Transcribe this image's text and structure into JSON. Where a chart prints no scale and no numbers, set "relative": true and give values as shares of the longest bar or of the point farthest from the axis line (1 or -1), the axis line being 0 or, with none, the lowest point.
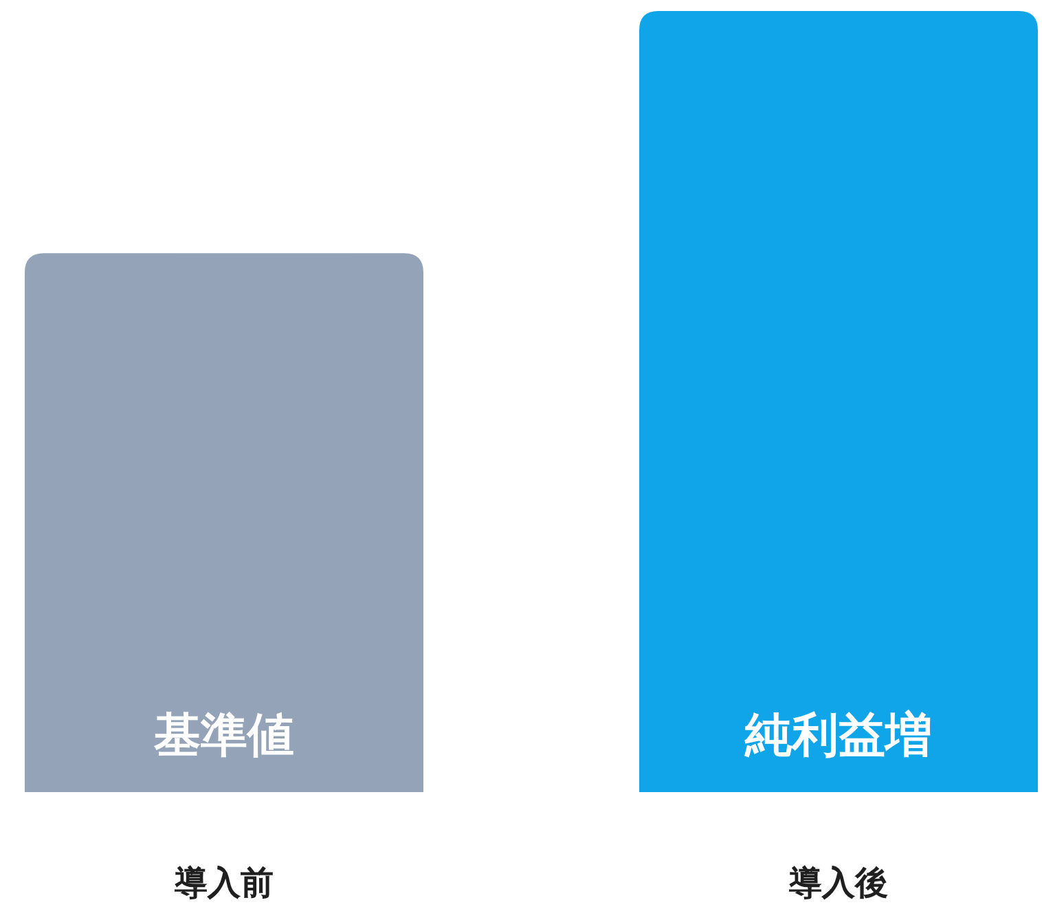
{
  "chart_data": {
    "type": "bar",
    "relative": true,
    "categories": [
      "導入前",
      "導入後"
    ],
    "values": [
      0.69,
      1
    ],
    "colors": [
      "#94a3b8",
      "#10a5e8"
    ],
    "annotations": [
      "基準値",
      "純利益増"
    ]
  }
}
